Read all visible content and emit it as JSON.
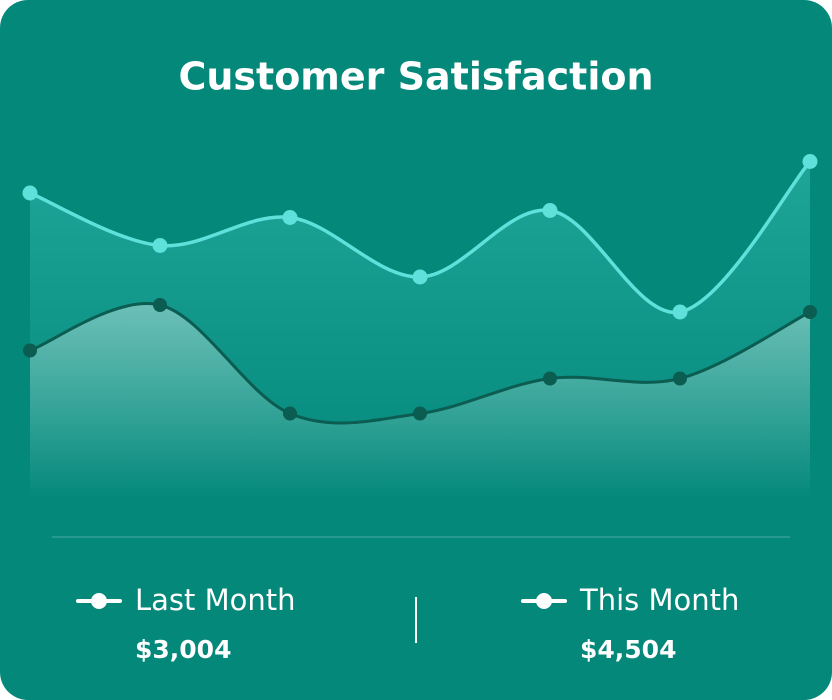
{
  "chart_data": {
    "type": "line",
    "title": "Customer Satisfaction",
    "categories": [
      null,
      null,
      null,
      null,
      null,
      null,
      null
    ],
    "ylim": [
      0,
      100
    ],
    "series": [
      {
        "name": "Last Month",
        "color": "#0b5c51",
        "values": [
          37,
          50,
          19,
          19,
          29,
          29,
          48
        ],
        "total": "$3,004"
      },
      {
        "name": "This Month",
        "color": "#5fe0da",
        "values": [
          82,
          67,
          75,
          58,
          77,
          48,
          91
        ],
        "total": "$4,504"
      }
    ]
  }
}
